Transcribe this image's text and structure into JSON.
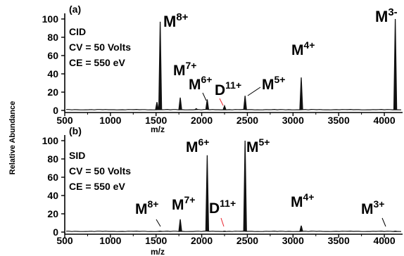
{
  "y_axis_label": "Relative Abundance",
  "chart_data": [
    {
      "type": "line",
      "panel_label": "(a)",
      "annotation": [
        "CID",
        "CV = 50 Volts",
        "CE = 550 eV"
      ],
      "xlabel": "m/z",
      "xlim": [
        500,
        4200
      ],
      "ylim": [
        0,
        100
      ],
      "xticks": [
        500,
        1000,
        1500,
        2000,
        2500,
        3000,
        3500,
        4000
      ],
      "yticks": [
        0,
        20,
        40,
        60,
        80,
        100
      ],
      "peaks": [
        {
          "x": 1510,
          "y": 9
        },
        {
          "x": 1545,
          "y": 97
        },
        {
          "x": 1765,
          "y": 14
        },
        {
          "x": 1940,
          "y": 2
        },
        {
          "x": 2060,
          "y": 12
        },
        {
          "x": 2250,
          "y": 5
        },
        {
          "x": 2475,
          "y": 16
        },
        {
          "x": 3090,
          "y": 36
        },
        {
          "x": 4120,
          "y": 100
        }
      ],
      "labels": [
        {
          "base": "M",
          "sup": "8+",
          "color": "#000000"
        },
        {
          "base": "M",
          "sup": "7+",
          "color": "#000000"
        },
        {
          "base": "M",
          "sup": "6+",
          "color": "#000000"
        },
        {
          "base": "D",
          "sup": "11+",
          "color": "#e8202a"
        },
        {
          "base": "M",
          "sup": "5+",
          "color": "#000000"
        },
        {
          "base": "M",
          "sup": "4+",
          "color": "#000000"
        },
        {
          "base": "M",
          "sup": "3-",
          "color": "#000000"
        }
      ]
    },
    {
      "type": "line",
      "panel_label": "(b)",
      "annotation": [
        "SID",
        "CV = 50 Volts",
        "CE = 550 eV"
      ],
      "xlabel": "m/z",
      "xlim": [
        500,
        4200
      ],
      "ylim": [
        0,
        100
      ],
      "xticks": [
        500,
        1000,
        1500,
        2000,
        2500,
        3000,
        3500,
        4000
      ],
      "yticks": [
        0,
        20,
        40,
        60,
        80,
        100
      ],
      "peaks": [
        {
          "x": 1545,
          "y": 1
        },
        {
          "x": 1765,
          "y": 14
        },
        {
          "x": 2060,
          "y": 84
        },
        {
          "x": 2250,
          "y": 1
        },
        {
          "x": 2475,
          "y": 100
        },
        {
          "x": 3090,
          "y": 7
        },
        {
          "x": 4120,
          "y": 1
        }
      ],
      "labels": [
        {
          "base": "M",
          "sup": "8+",
          "color": "#000000"
        },
        {
          "base": "M",
          "sup": "7+",
          "color": "#000000"
        },
        {
          "base": "M",
          "sup": "6+",
          "color": "#000000"
        },
        {
          "base": "D",
          "sup": "11+",
          "color": "#e8202a"
        },
        {
          "base": "M",
          "sup": "5+",
          "color": "#000000"
        },
        {
          "base": "M",
          "sup": "4+",
          "color": "#000000"
        },
        {
          "base": "M",
          "sup": "3+",
          "color": "#000000"
        }
      ]
    }
  ]
}
